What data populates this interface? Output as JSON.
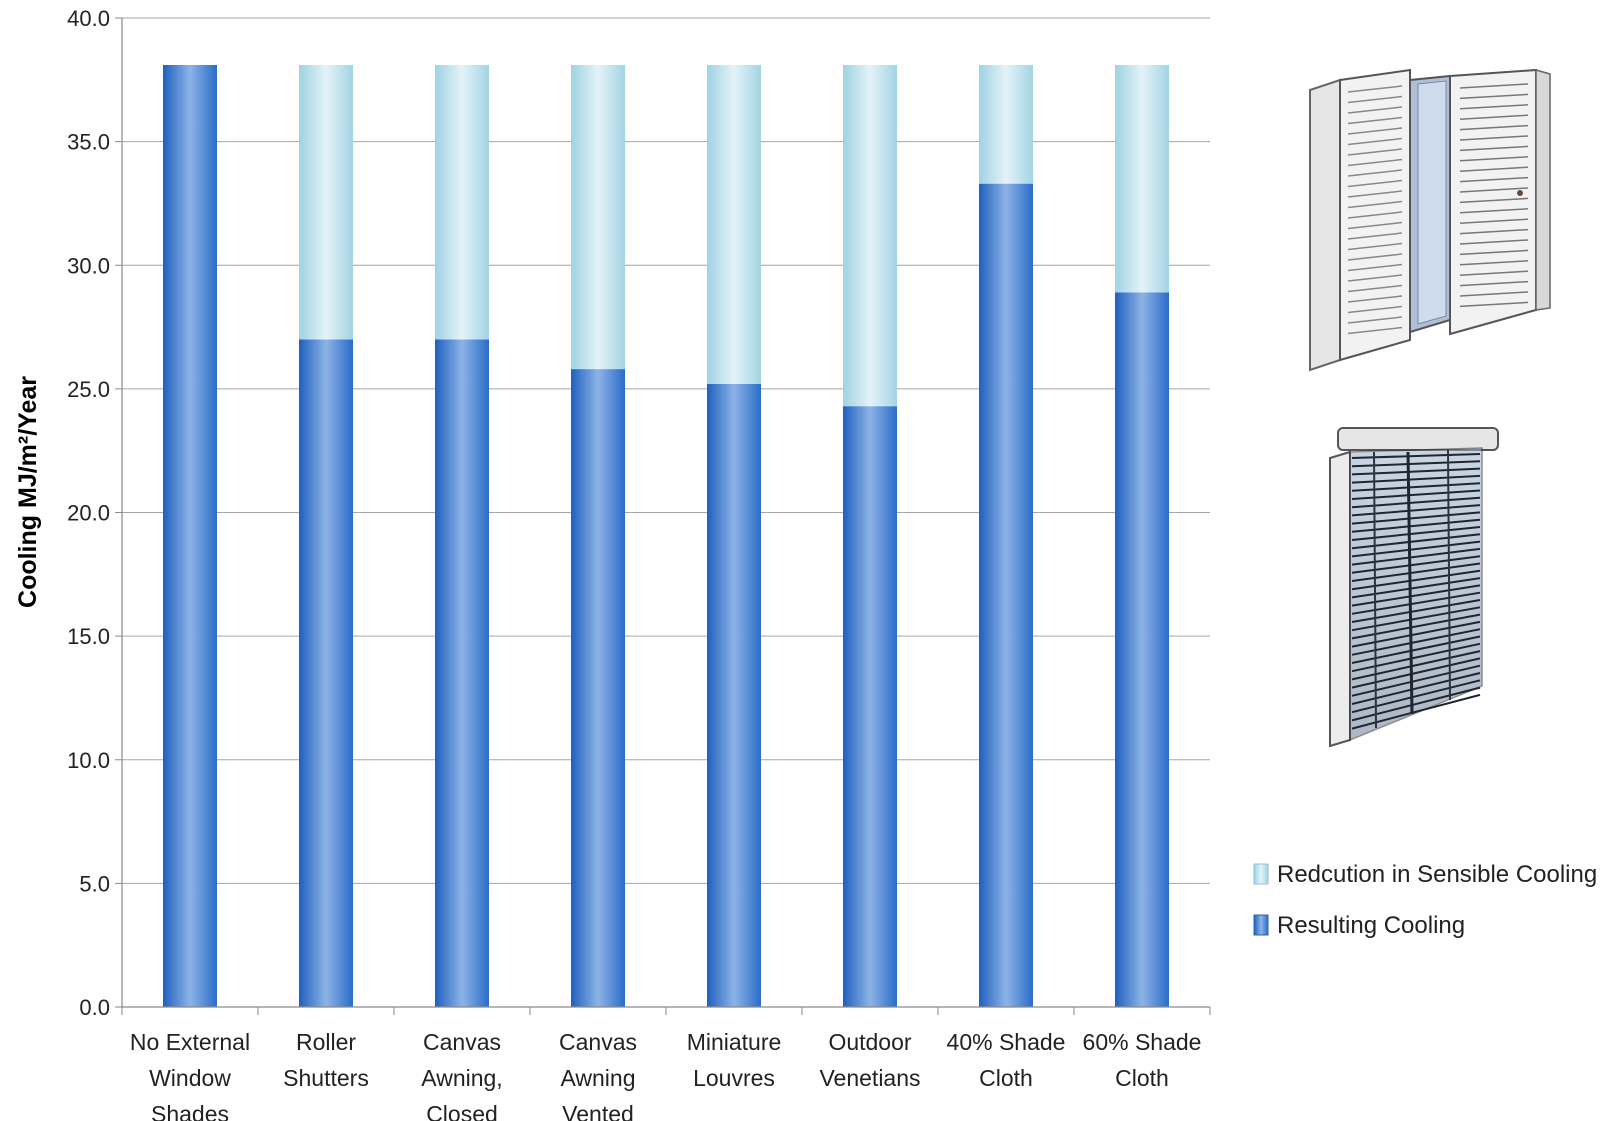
{
  "chart_data": {
    "type": "bar",
    "stacked": true,
    "title": "",
    "xlabel": "",
    "ylabel": "Cooling MJ/m²/Year",
    "ylim": [
      0,
      40
    ],
    "yticks": [
      "0.0",
      "5.0",
      "10.0",
      "15.0",
      "20.0",
      "25.0",
      "30.0",
      "35.0",
      "40.0"
    ],
    "grid": true,
    "legend_position": "right",
    "categories": [
      [
        "No External",
        "Window",
        "Shades"
      ],
      [
        "Roller",
        "Shutters"
      ],
      [
        "Canvas",
        "Awning,",
        "Closed"
      ],
      [
        "Canvas",
        "Awning",
        "Vented"
      ],
      [
        "Miniature",
        "Louvres"
      ],
      [
        "Outdoor",
        "Venetians"
      ],
      [
        "40% Shade",
        "Cloth"
      ],
      [
        "60% Shade",
        "Cloth"
      ]
    ],
    "series": [
      {
        "name": "Resulting Cooling",
        "color": "#2e6fc9",
        "values": [
          38.1,
          27.0,
          27.0,
          25.8,
          25.2,
          24.3,
          33.3,
          28.9
        ]
      },
      {
        "name": "Redcution in Sensible Cooling",
        "color": "#a9d8e8",
        "values": [
          0.0,
          11.1,
          11.1,
          12.3,
          12.9,
          13.8,
          4.8,
          9.2
        ]
      }
    ],
    "legend_order": [
      "Redcution in Sensible Cooling",
      "Resulting Cooling"
    ],
    "illustrations": [
      "hinged-louvre-shutter-image",
      "external-venetian-blind-image"
    ]
  }
}
